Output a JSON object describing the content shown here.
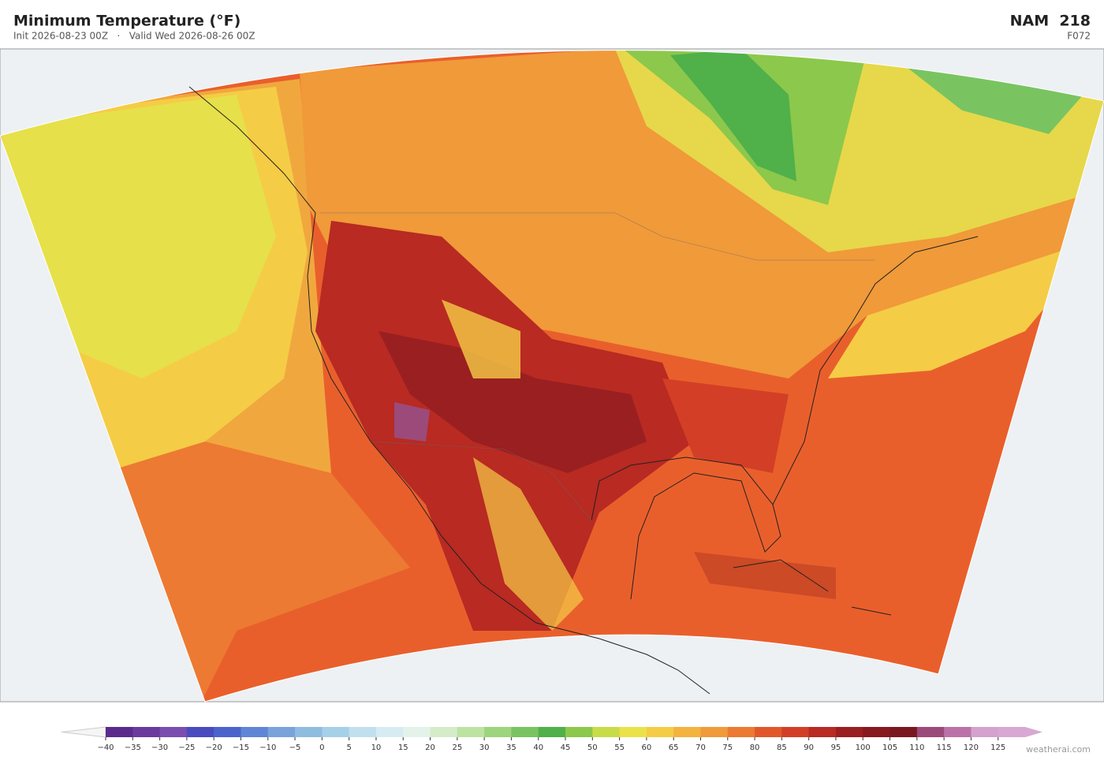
{
  "header": {
    "title": "Minimum Temperature  (°F)",
    "subtitle": "Init 2026-08-23 00Z   ·   Valid Wed 2026-08-26 00Z",
    "model": "NAM  218",
    "forecast_hour": "F072"
  },
  "colorbar": {
    "lim": [
      -40,
      130
    ],
    "ticks": [
      {
        "value": -40,
        "label": "−40"
      },
      {
        "value": -35,
        "label": "−35"
      },
      {
        "value": -30,
        "label": "−30"
      },
      {
        "value": -25,
        "label": "−25"
      },
      {
        "value": -20,
        "label": "−20"
      },
      {
        "value": -15,
        "label": "−15"
      },
      {
        "value": -10,
        "label": "−10"
      },
      {
        "value": -5,
        "label": "−5"
      },
      0,
      5,
      10,
      15,
      20,
      25,
      30,
      35,
      40,
      45,
      50,
      55,
      60,
      65,
      70,
      75,
      80,
      85,
      90,
      95,
      100,
      105,
      110,
      115,
      120,
      125
    ],
    "colors": [
      "#5b2a8c",
      "#6b3a9e",
      "#7a4db0",
      "#4a4bbf",
      "#4c63cc",
      "#5f86d6",
      "#7aa3dc",
      "#8fbde0",
      "#a6d0e8",
      "#c0e0ee",
      "#d6ecf2",
      "#e4f3ea",
      "#d4ecc8",
      "#bde3a2",
      "#9ed47c",
      "#79c461",
      "#50b04a",
      "#8cc84c",
      "#c8dc48",
      "#ebe24a",
      "#f5cc46",
      "#f4b23e",
      "#f09a3a",
      "#ec7a32",
      "#e2572a",
      "#d23f26",
      "#b82a22",
      "#9a1f20",
      "#861a1e",
      "#7a1820",
      "#9c4a7a",
      "#bb72a8",
      "#d4a2cc",
      "#d8a8d2"
    ]
  },
  "footer": {
    "credit": "weatherai.com"
  }
}
